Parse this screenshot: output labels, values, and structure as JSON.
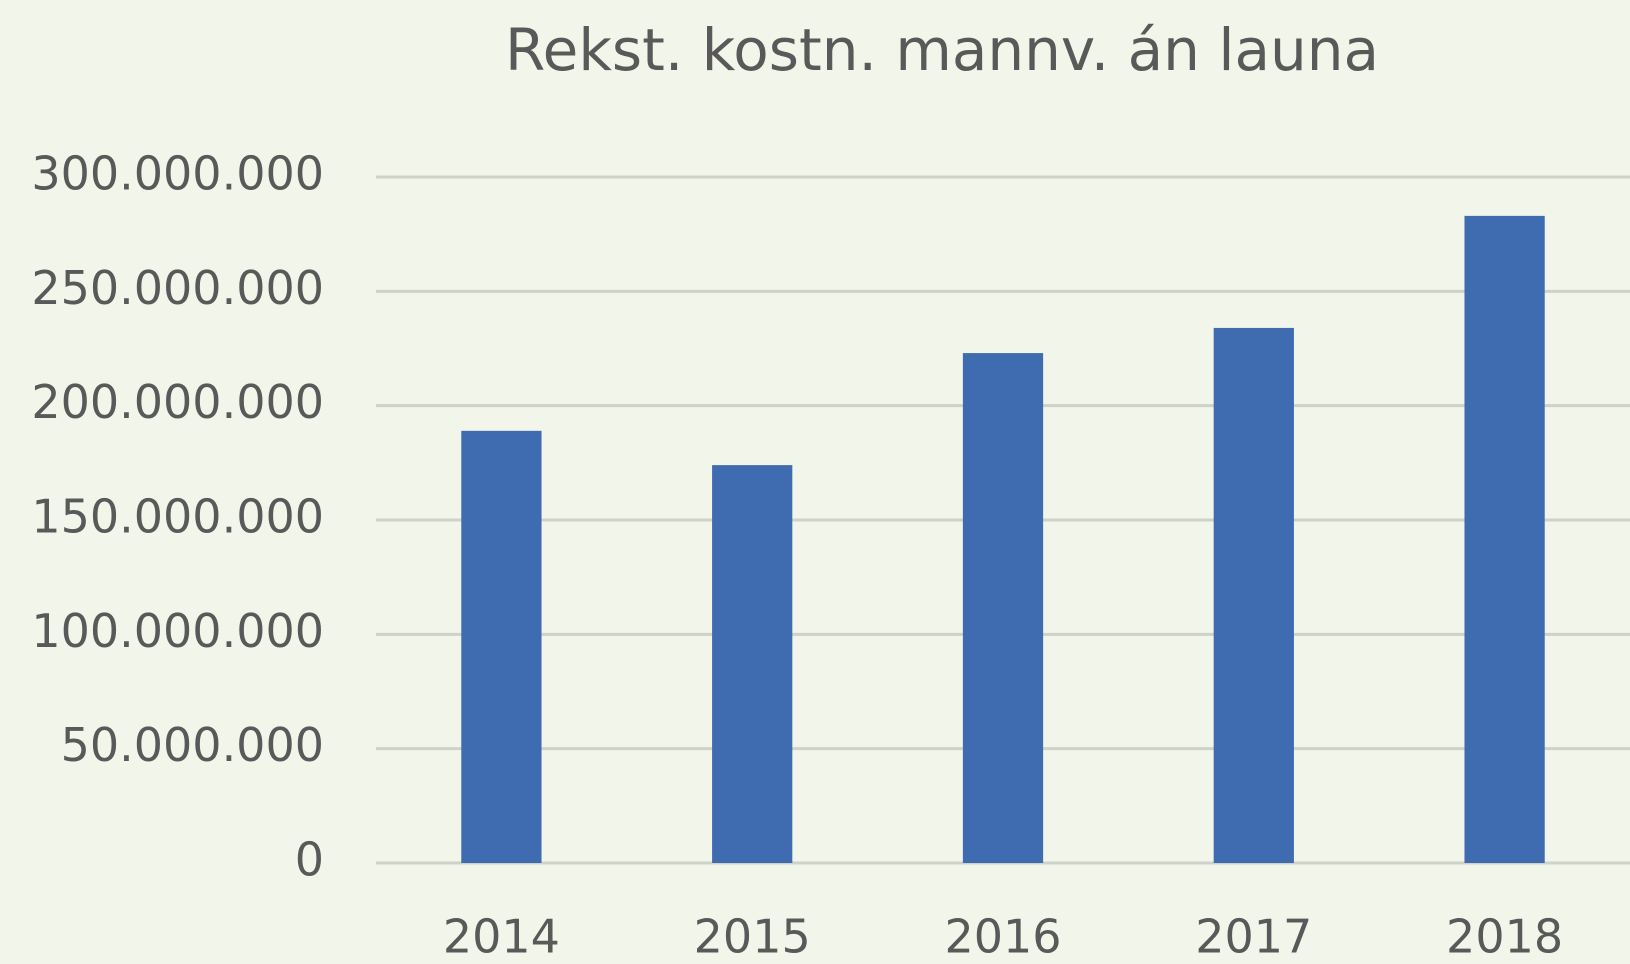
{
  "chart_data": {
    "type": "bar",
    "title": "Rekst. kostn. mannv. án launa",
    "categories": [
      "2014",
      "2015",
      "2016",
      "2017",
      "2018"
    ],
    "values": [
      189000000,
      174000000,
      223000000,
      234000000,
      283000000
    ],
    "color": "#3f6cb0",
    "ylim": [
      0,
      300000000
    ],
    "yticks": [
      0,
      {
        "value": 50000000,
        "label": "50.000.000"
      },
      {
        "value": 100000000,
        "label": "100.000.000"
      },
      {
        "value": 150000000,
        "label": "150.000.000"
      },
      {
        "value": 200000000,
        "label": "200.000.000"
      },
      {
        "value": 250000000,
        "label": "250.000.000"
      },
      {
        "value": 300000000,
        "label": "300.000.000"
      }
    ],
    "grid": true
  }
}
